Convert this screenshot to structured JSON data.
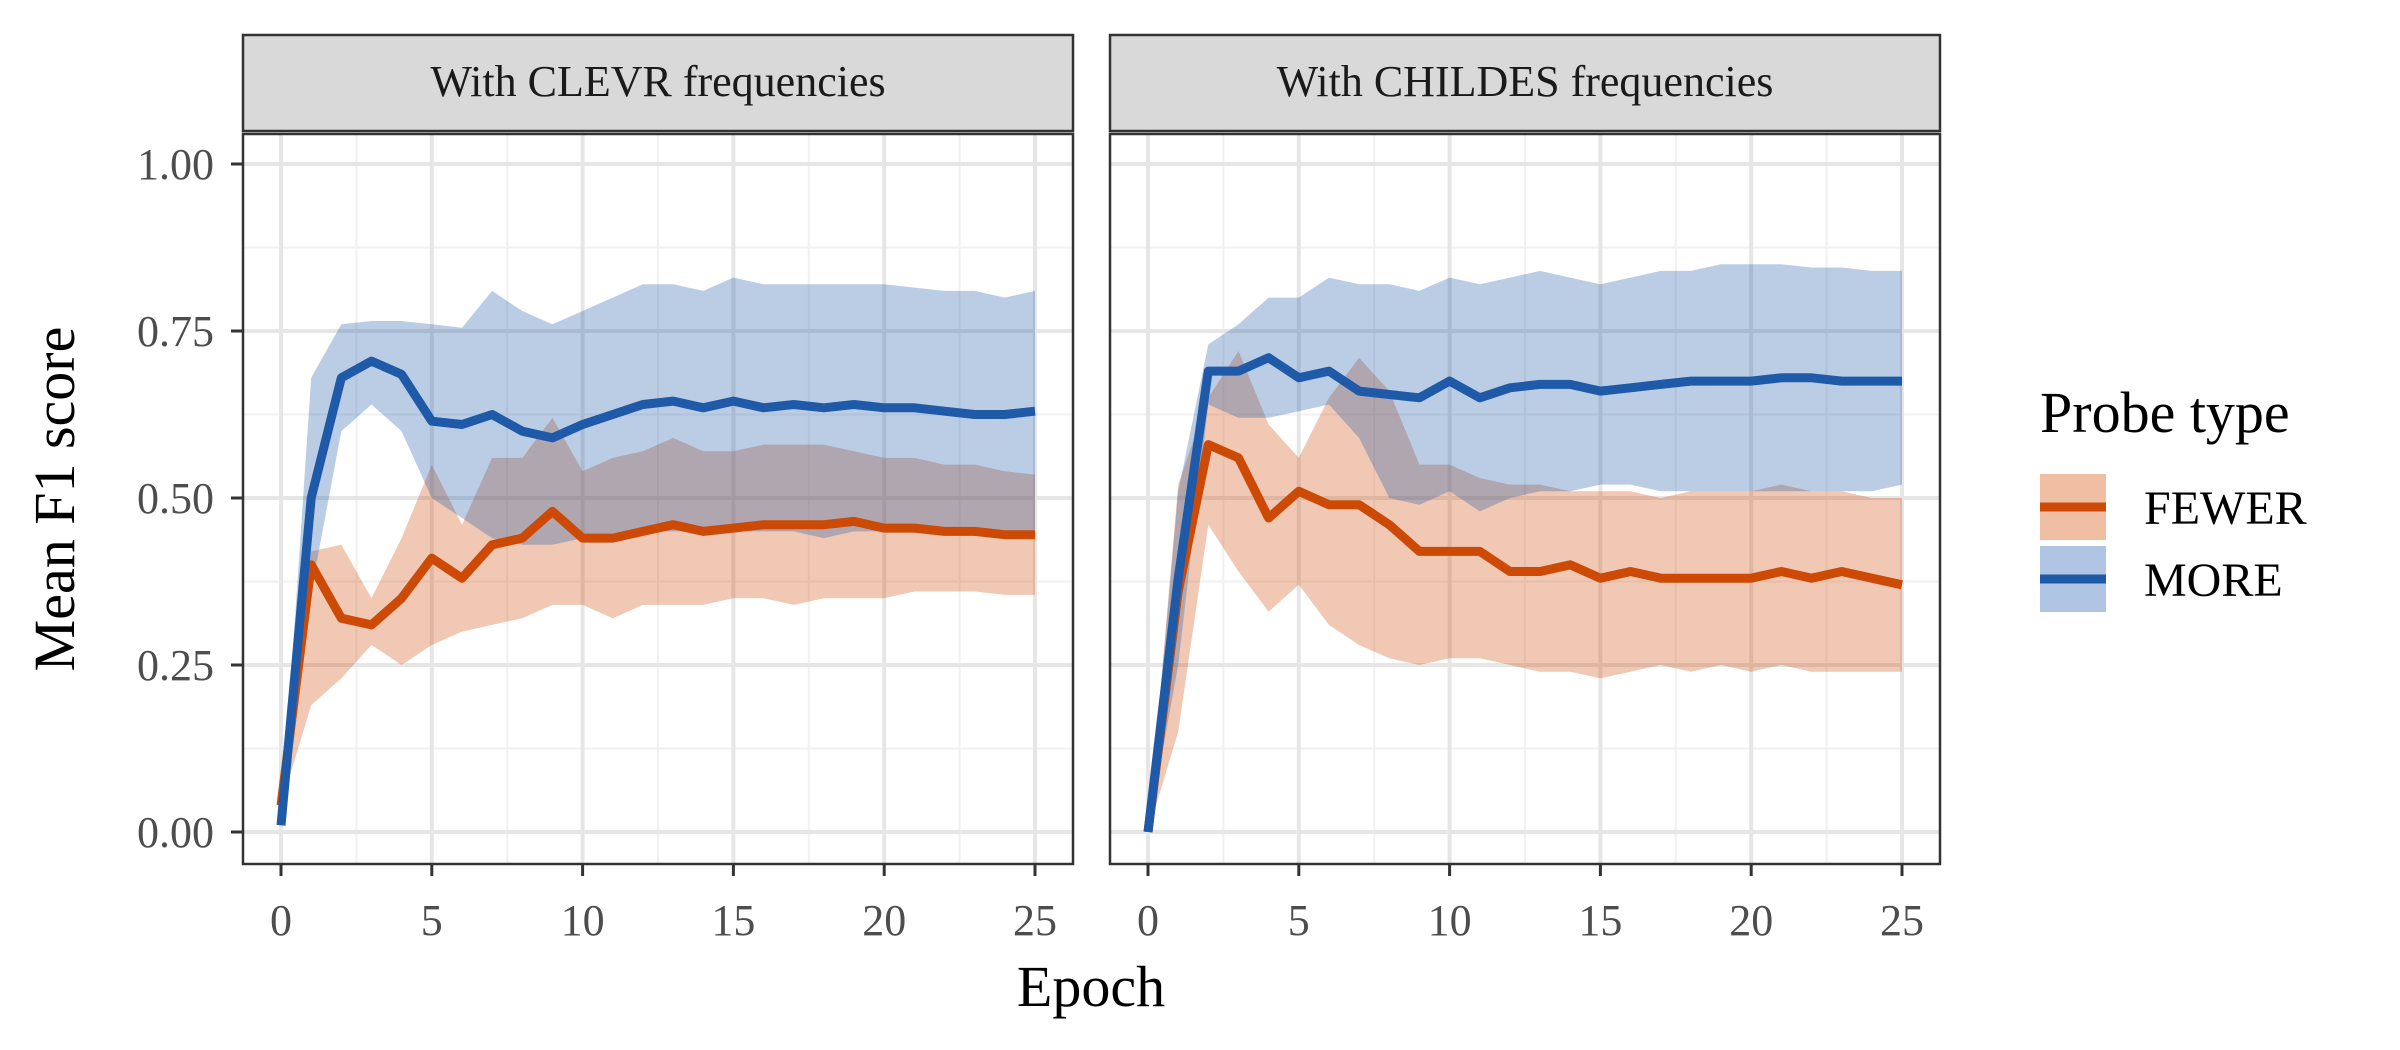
{
  "chart_data": {
    "type": "line",
    "xlabel": "Epoch",
    "ylabel": "Mean F1 score",
    "xlim": [
      0,
      25
    ],
    "ylim": [
      0,
      1
    ],
    "xticks": [
      0,
      5,
      10,
      15,
      20,
      25
    ],
    "xtick_labels": [
      "0",
      "5",
      "10",
      "15",
      "20",
      "25"
    ],
    "yticks": [
      0,
      0.25,
      0.5,
      0.75,
      1
    ],
    "ytick_labels": [
      "0.00",
      "0.25",
      "0.50",
      "0.75",
      "1.00"
    ],
    "grid": true,
    "legend": {
      "title": "Probe type",
      "placement": "right",
      "entries": [
        {
          "label": "FEWER",
          "line_color": "#CC4A05",
          "fill_color": "#F0BFA3"
        },
        {
          "label": "MORE",
          "line_color": "#1F5AA8",
          "fill_color": "#AFC5E3"
        }
      ]
    },
    "panels": [
      {
        "title": "With CLEVR frequencies",
        "series": [
          {
            "name": "FEWER",
            "x": [
              0,
              1,
              2,
              3,
              4,
              5,
              6,
              7,
              8,
              9,
              10,
              11,
              12,
              13,
              14,
              15,
              16,
              17,
              18,
              19,
              20,
              21,
              22,
              23,
              24,
              25
            ],
            "y": [
              0.04,
              0.4,
              0.32,
              0.31,
              0.35,
              0.41,
              0.38,
              0.43,
              0.44,
              0.48,
              0.44,
              0.44,
              0.45,
              0.46,
              0.45,
              0.455,
              0.46,
              0.46,
              0.46,
              0.465,
              0.455,
              0.455,
              0.45,
              0.45,
              0.445,
              0.445
            ],
            "lower": [
              0.04,
              0.19,
              0.23,
              0.28,
              0.25,
              0.28,
              0.3,
              0.31,
              0.32,
              0.34,
              0.34,
              0.32,
              0.34,
              0.34,
              0.34,
              0.35,
              0.35,
              0.34,
              0.35,
              0.35,
              0.35,
              0.36,
              0.36,
              0.36,
              0.355,
              0.355
            ],
            "upper": [
              0.04,
              0.42,
              0.43,
              0.35,
              0.44,
              0.55,
              0.46,
              0.56,
              0.56,
              0.62,
              0.54,
              0.56,
              0.57,
              0.59,
              0.57,
              0.57,
              0.58,
              0.58,
              0.58,
              0.57,
              0.56,
              0.56,
              0.55,
              0.55,
              0.54,
              0.535
            ]
          },
          {
            "name": "MORE",
            "x": [
              0,
              1,
              2,
              3,
              4,
              5,
              6,
              7,
              8,
              9,
              10,
              11,
              12,
              13,
              14,
              15,
              16,
              17,
              18,
              19,
              20,
              21,
              22,
              23,
              24,
              25
            ],
            "y": [
              0.01,
              0.5,
              0.68,
              0.705,
              0.685,
              0.615,
              0.61,
              0.625,
              0.6,
              0.59,
              0.61,
              0.625,
              0.64,
              0.645,
              0.635,
              0.645,
              0.635,
              0.64,
              0.635,
              0.64,
              0.635,
              0.635,
              0.63,
              0.625,
              0.625,
              0.63
            ],
            "lower": [
              0.01,
              0.36,
              0.6,
              0.64,
              0.6,
              0.5,
              0.47,
              0.44,
              0.43,
              0.43,
              0.44,
              0.44,
              0.45,
              0.45,
              0.45,
              0.45,
              0.45,
              0.45,
              0.44,
              0.45,
              0.45,
              0.45,
              0.45,
              0.45,
              0.44,
              0.44
            ],
            "upper": [
              0.01,
              0.68,
              0.76,
              0.765,
              0.765,
              0.76,
              0.755,
              0.81,
              0.78,
              0.76,
              0.78,
              0.8,
              0.82,
              0.82,
              0.81,
              0.83,
              0.82,
              0.82,
              0.82,
              0.82,
              0.82,
              0.815,
              0.81,
              0.81,
              0.8,
              0.81
            ]
          }
        ]
      },
      {
        "title": "With CHILDES frequencies",
        "series": [
          {
            "name": "FEWER",
            "x": [
              0,
              1,
              2,
              3,
              4,
              5,
              6,
              7,
              8,
              9,
              10,
              11,
              12,
              13,
              14,
              15,
              16,
              17,
              18,
              19,
              20,
              21,
              22,
              23,
              24,
              25
            ],
            "y": [
              0.0,
              0.36,
              0.58,
              0.56,
              0.47,
              0.51,
              0.49,
              0.49,
              0.46,
              0.42,
              0.42,
              0.42,
              0.39,
              0.39,
              0.4,
              0.38,
              0.39,
              0.38,
              0.38,
              0.38,
              0.38,
              0.39,
              0.38,
              0.39,
              0.38,
              0.37
            ],
            "lower": [
              0.0,
              0.15,
              0.46,
              0.39,
              0.33,
              0.37,
              0.31,
              0.28,
              0.26,
              0.25,
              0.26,
              0.26,
              0.25,
              0.24,
              0.24,
              0.23,
              0.24,
              0.25,
              0.24,
              0.25,
              0.24,
              0.25,
              0.24,
              0.24,
              0.24,
              0.24
            ],
            "upper": [
              0.0,
              0.52,
              0.65,
              0.72,
              0.61,
              0.56,
              0.65,
              0.71,
              0.66,
              0.55,
              0.55,
              0.53,
              0.52,
              0.52,
              0.51,
              0.51,
              0.51,
              0.5,
              0.51,
              0.51,
              0.51,
              0.52,
              0.51,
              0.51,
              0.5,
              0.5
            ]
          },
          {
            "name": "MORE",
            "x": [
              0,
              1,
              2,
              3,
              4,
              5,
              6,
              7,
              8,
              9,
              10,
              11,
              12,
              13,
              14,
              15,
              16,
              17,
              18,
              19,
              20,
              21,
              22,
              23,
              24,
              25
            ],
            "y": [
              0.0,
              0.38,
              0.69,
              0.69,
              0.71,
              0.68,
              0.69,
              0.66,
              0.655,
              0.65,
              0.675,
              0.65,
              0.665,
              0.67,
              0.67,
              0.66,
              0.665,
              0.67,
              0.675,
              0.675,
              0.675,
              0.68,
              0.68,
              0.675,
              0.675,
              0.675
            ],
            "lower": [
              0.0,
              0.25,
              0.64,
              0.62,
              0.62,
              0.63,
              0.64,
              0.59,
              0.5,
              0.49,
              0.51,
              0.48,
              0.5,
              0.51,
              0.51,
              0.52,
              0.52,
              0.51,
              0.51,
              0.51,
              0.51,
              0.51,
              0.51,
              0.51,
              0.51,
              0.52
            ],
            "upper": [
              0.0,
              0.51,
              0.73,
              0.76,
              0.8,
              0.8,
              0.83,
              0.82,
              0.82,
              0.81,
              0.83,
              0.82,
              0.83,
              0.84,
              0.83,
              0.82,
              0.83,
              0.84,
              0.84,
              0.85,
              0.85,
              0.85,
              0.845,
              0.845,
              0.84,
              0.84
            ]
          }
        ]
      }
    ]
  }
}
